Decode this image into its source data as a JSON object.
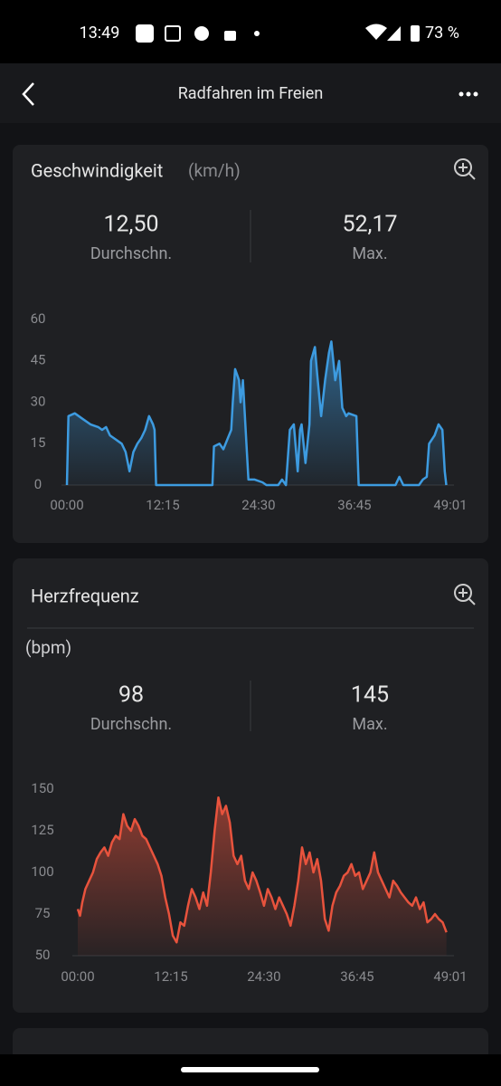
{
  "status_bar": {
    "time": "13:49",
    "battery": "73 %"
  },
  "header": {
    "title": "Radfahren im Freien"
  },
  "cards": [
    {
      "title": "Geschwindigkeit",
      "unit": "(km/h)",
      "stats": [
        {
          "value": "12,50",
          "label": "Durchschn."
        },
        {
          "value": "52,17",
          "label": "Max."
        }
      ],
      "chart_data": {
        "type": "area",
        "color": "#3d9be0",
        "grid": false,
        "xlim": [
          0,
          49.017
        ],
        "ylim": [
          0,
          60
        ],
        "yticks": [
          0,
          15,
          30,
          45,
          60
        ],
        "xticks": [
          {
            "value": 0,
            "label": "00:00"
          },
          {
            "value": 12.25,
            "label": "12:15"
          },
          {
            "value": 24.5,
            "label": "24:30"
          },
          {
            "value": 36.75,
            "label": "36:45"
          },
          {
            "value": 49.017,
            "label": "49:01"
          }
        ],
        "x": [
          0,
          0.2,
          1,
          2,
          3,
          4,
          4.5,
          5,
          5.5,
          6,
          6.5,
          7,
          7.5,
          8,
          8.5,
          9,
          9.5,
          10,
          10.5,
          11,
          11.2,
          11.4,
          13,
          17,
          18.6,
          18.8,
          19.5,
          20,
          21,
          21.2,
          21.5,
          22,
          22.2,
          22.5,
          23,
          23.2,
          24,
          25,
          25.5,
          27,
          27.5,
          28,
          28.5,
          29,
          29.5,
          29.8,
          30,
          30.5,
          31,
          31.2,
          31.7,
          32,
          32.5,
          33,
          33.5,
          33.8,
          34.3,
          34.8,
          35.2,
          35.7,
          36,
          37,
          37.3,
          40,
          42,
          42.5,
          43,
          45,
          45.5,
          46,
          46.3,
          47,
          47.5,
          48,
          48.3,
          48.5
        ],
        "values": [
          0,
          25,
          26,
          24,
          22,
          21,
          20,
          21,
          18,
          17,
          16,
          15,
          12,
          5,
          12,
          15,
          17,
          20,
          25,
          22,
          20,
          0,
          0,
          0,
          0,
          14,
          15,
          13,
          20,
          30,
          42,
          38,
          30,
          38,
          12,
          2,
          2,
          1,
          0,
          0,
          2,
          0,
          20,
          22,
          5,
          20,
          22,
          8,
          22,
          45,
          50,
          40,
          25,
          38,
          48,
          52,
          38,
          45,
          28,
          25,
          26,
          25,
          0,
          0,
          0,
          3,
          0,
          0,
          2,
          3,
          15,
          18,
          22,
          20,
          5,
          0
        ]
      }
    },
    {
      "title": "Herzfrequenz",
      "unit": "(bpm)",
      "stats": [
        {
          "value": "98",
          "label": "Durchschn."
        },
        {
          "value": "145",
          "label": "Max."
        }
      ],
      "chart_data": {
        "type": "area",
        "color": "#e8533d",
        "grid": false,
        "xlim": [
          0,
          49.017
        ],
        "ylim": [
          50,
          150
        ],
        "yticks": [
          50,
          75,
          100,
          125,
          150
        ],
        "xticks": [
          {
            "value": 0,
            "label": "00:00"
          },
          {
            "value": 12.25,
            "label": "12:15"
          },
          {
            "value": 24.5,
            "label": "24:30"
          },
          {
            "value": 36.75,
            "label": "36:45"
          },
          {
            "value": 49.017,
            "label": "49:01"
          }
        ],
        "x": [
          0,
          0.3,
          0.6,
          1,
          1.5,
          2,
          2.5,
          3,
          3.5,
          4,
          4.5,
          5,
          5.5,
          6,
          6.5,
          7,
          7.5,
          8,
          8.5,
          9,
          9.5,
          10,
          10.5,
          11,
          11.5,
          12,
          12.5,
          13,
          13.5,
          14,
          14.5,
          15,
          15.5,
          16,
          16.5,
          17,
          17.5,
          18,
          18.5,
          19,
          19.5,
          20,
          20.5,
          21,
          21.5,
          22,
          22.5,
          23,
          23.5,
          24,
          24.5,
          25,
          25.5,
          26,
          26.5,
          27,
          27.5,
          28,
          28.5,
          29,
          29.5,
          30,
          30.5,
          31,
          31.5,
          32,
          32.5,
          33,
          33.5,
          34,
          34.5,
          35,
          35.5,
          36,
          36.5,
          37,
          37.5,
          38,
          38.5,
          39,
          39.5,
          40,
          40.5,
          41,
          41.5,
          42,
          42.5,
          43,
          43.5,
          44,
          44.5,
          45,
          45.5,
          46,
          46.5,
          47,
          47.5,
          48,
          48.5
        ],
        "values": [
          78,
          74,
          82,
          90,
          95,
          100,
          108,
          112,
          115,
          110,
          118,
          122,
          120,
          135,
          128,
          125,
          132,
          128,
          122,
          120,
          115,
          110,
          105,
          98,
          85,
          75,
          62,
          58,
          70,
          68,
          80,
          90,
          85,
          78,
          88,
          80,
          100,
          125,
          145,
          135,
          140,
          130,
          110,
          105,
          110,
          95,
          90,
          100,
          95,
          88,
          80,
          90,
          85,
          78,
          85,
          80,
          75,
          68,
          80,
          95,
          115,
          105,
          112,
          100,
          108,
          95,
          72,
          65,
          80,
          88,
          92,
          98,
          100,
          105,
          98,
          100,
          90,
          95,
          100,
          112,
          100,
          95,
          90,
          85,
          95,
          92,
          88,
          85,
          82,
          80,
          85,
          78,
          82,
          70,
          72,
          75,
          72,
          70,
          64
        ]
      }
    }
  ]
}
